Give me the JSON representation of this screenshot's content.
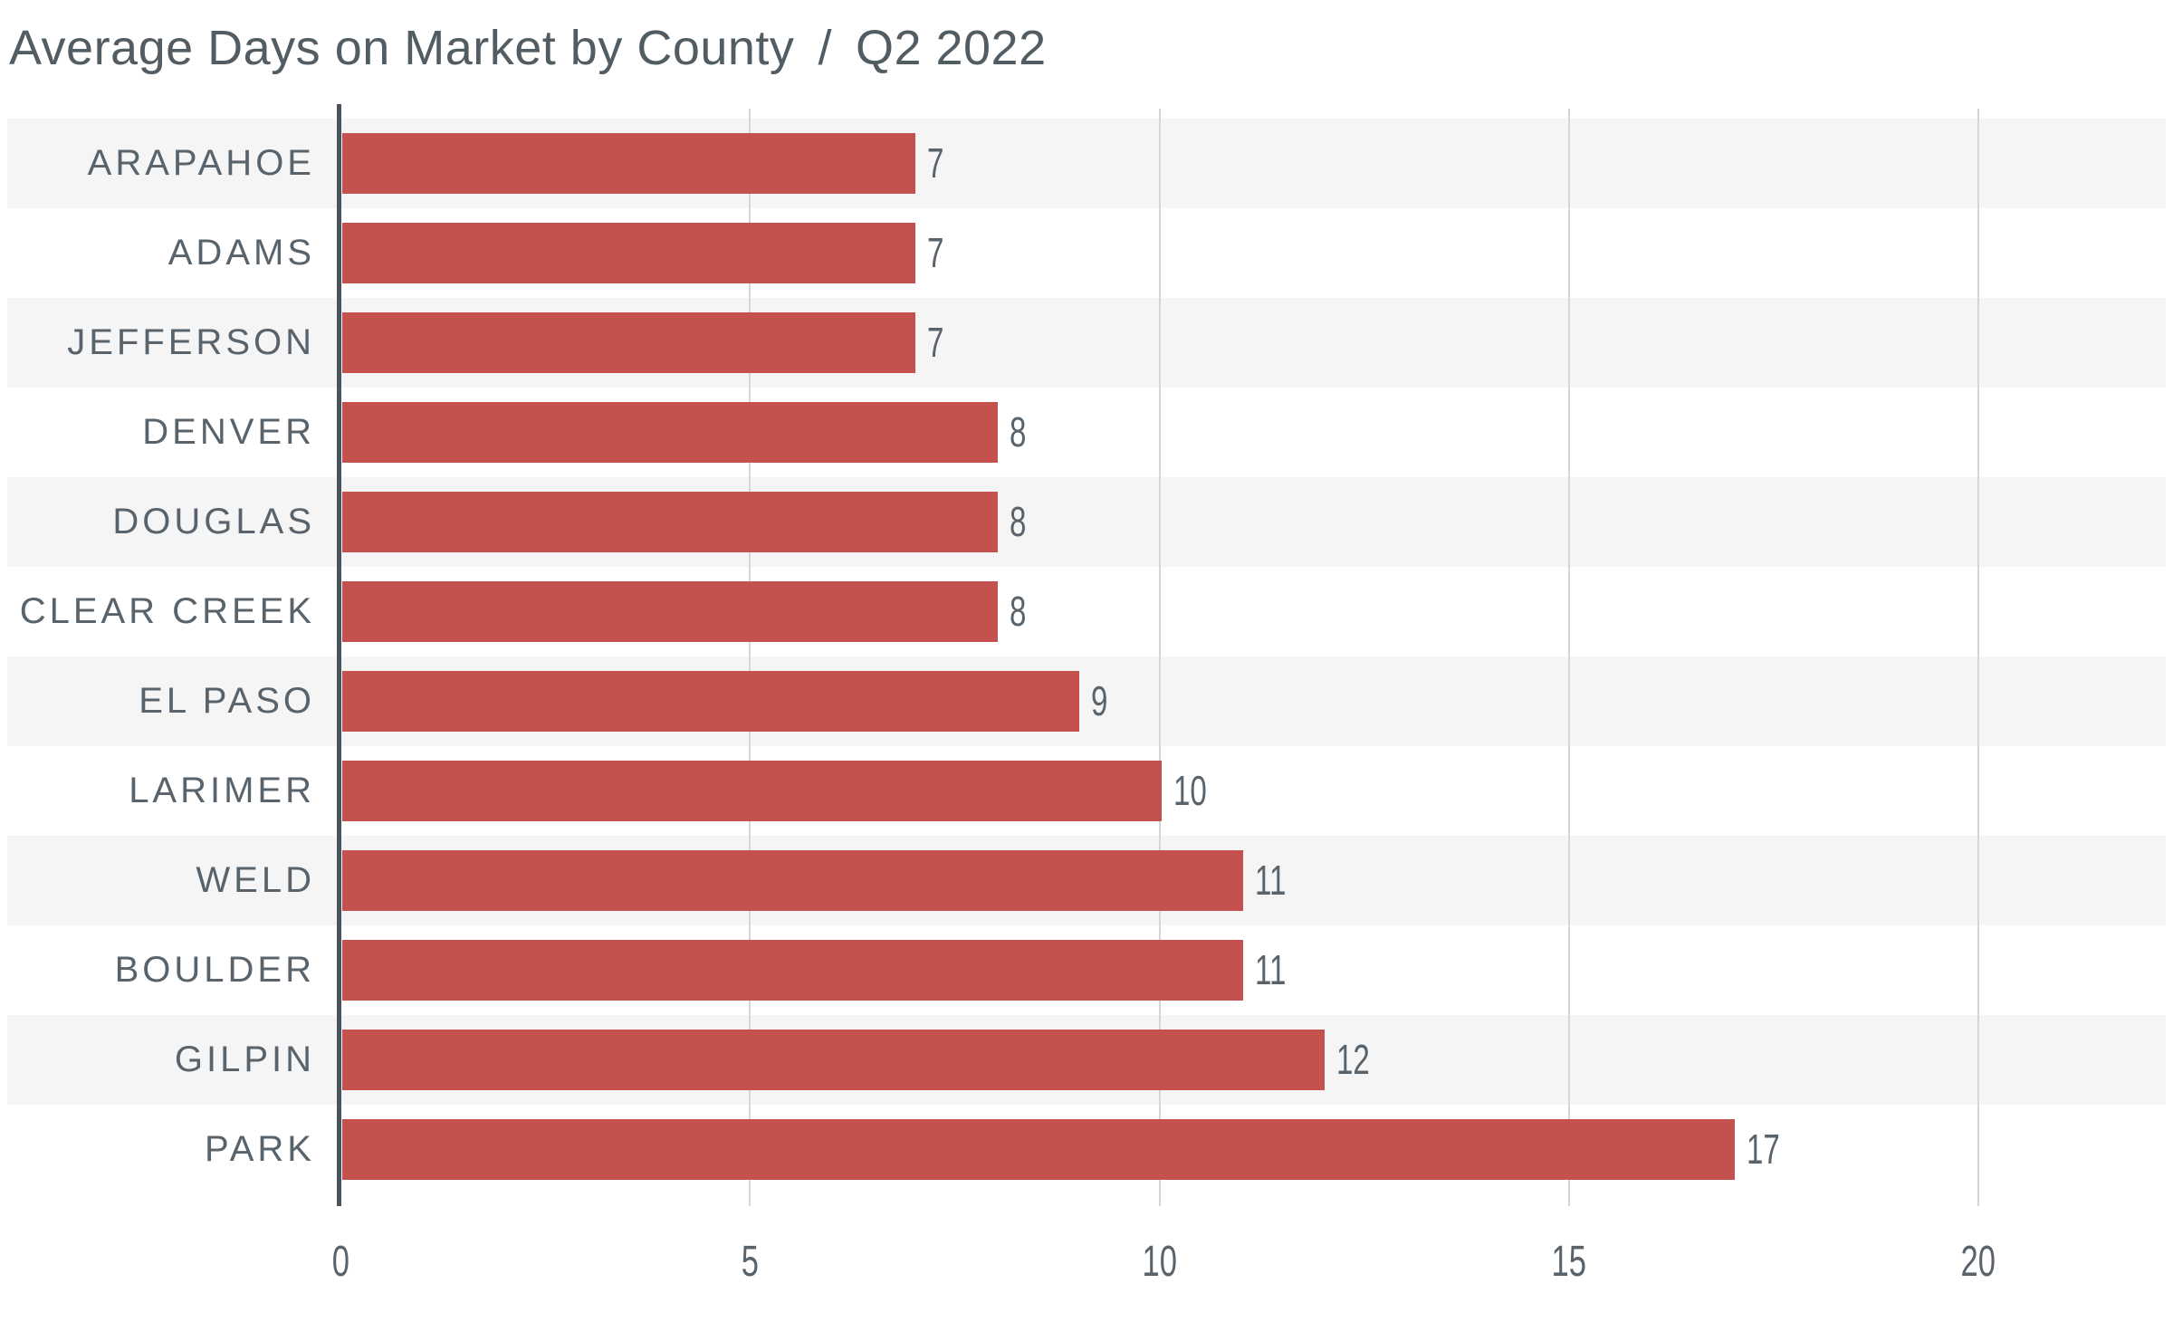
{
  "header": {
    "title": "Average Days on Market by County",
    "separator": "/",
    "period": "Q2 2022"
  },
  "chart_data": {
    "type": "bar",
    "orientation": "horizontal",
    "title": "Average Days on Market by County",
    "subtitle": "Q2 2022",
    "categories": [
      "ARAPAHOE",
      "ADAMS",
      "JEFFERSON",
      "DENVER",
      "DOUGLAS",
      "CLEAR CREEK",
      "EL PASO",
      "LARIMER",
      "WELD",
      "BOULDER",
      "GILPIN",
      "PARK"
    ],
    "values": [
      7,
      7,
      7,
      8,
      8,
      8,
      9,
      10,
      11,
      11,
      12,
      17
    ],
    "xlabel": "",
    "ylabel": "",
    "x_ticks": [
      0,
      5,
      10,
      15,
      20
    ],
    "xlim": [
      0,
      22.3
    ],
    "grid": "vertical-gridlines-at-ticks",
    "row_striping": "alternate-rows-shaded-starting-with-first",
    "legend": "none",
    "value_labels": "outside-end-of-bar",
    "colors": {
      "bar": "#c5514f",
      "row_stripe": "#f5f5f6",
      "axis_line": "#4b545c",
      "gridline": "#d4d6d7",
      "title_text": "#525c63",
      "label_text": "#59636b"
    }
  }
}
